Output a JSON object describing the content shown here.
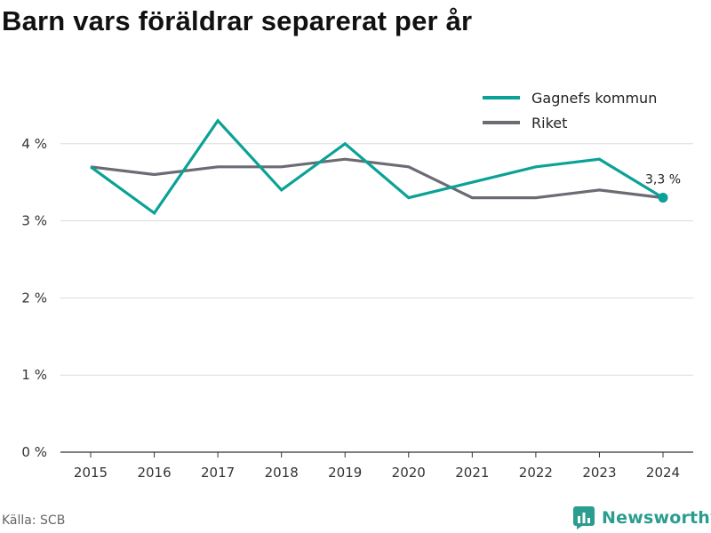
{
  "title": "Barn vars föräldrar separerat per år",
  "source": "Källa: SCB",
  "brand": {
    "name": "Newsworthy",
    "icon": "newsworthy-logo-icon"
  },
  "colors": {
    "teal": "#0aa296",
    "gray": "#6c6b73",
    "grid": "#dcdcdc",
    "brand": "#2a9d8f"
  },
  "chart_data": {
    "type": "line",
    "title": "Barn vars föräldrar separerat per år",
    "xlabel": "",
    "ylabel": "",
    "categories": [
      "2015",
      "2016",
      "2017",
      "2018",
      "2019",
      "2020",
      "2021",
      "2022",
      "2023",
      "2024"
    ],
    "series": [
      {
        "name": "Gagnefs kommun",
        "color": "#0aa296",
        "values": [
          3.7,
          3.1,
          4.3,
          3.4,
          4.0,
          3.3,
          3.5,
          3.7,
          3.8,
          3.3
        ]
      },
      {
        "name": "Riket",
        "color": "#6c6b73",
        "values": [
          3.7,
          3.6,
          3.7,
          3.7,
          3.8,
          3.7,
          3.3,
          3.3,
          3.4,
          3.3
        ]
      }
    ],
    "ylim": [
      0,
      5
    ],
    "yticks": [
      0,
      1,
      2,
      3,
      4
    ],
    "ytick_labels": [
      "0 %",
      "1 %",
      "2 %",
      "3 %",
      "4 %"
    ],
    "grid": true,
    "legend": "top-right",
    "annotation": {
      "series": 0,
      "index": 9,
      "label": "3,3 %"
    }
  }
}
